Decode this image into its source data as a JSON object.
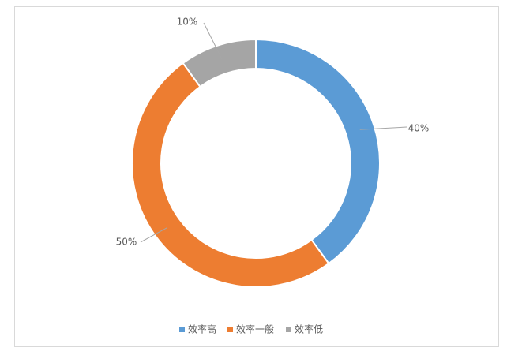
{
  "chart_data": {
    "type": "donut",
    "categories": [
      "效率高",
      "效率一般",
      "效率低"
    ],
    "values": [
      40,
      50,
      10
    ],
    "value_labels": [
      "40%",
      "50%",
      "10%"
    ],
    "colors": [
      "#5b9bd5",
      "#ed7d31",
      "#a5a5a5"
    ],
    "legend": "bottom"
  }
}
